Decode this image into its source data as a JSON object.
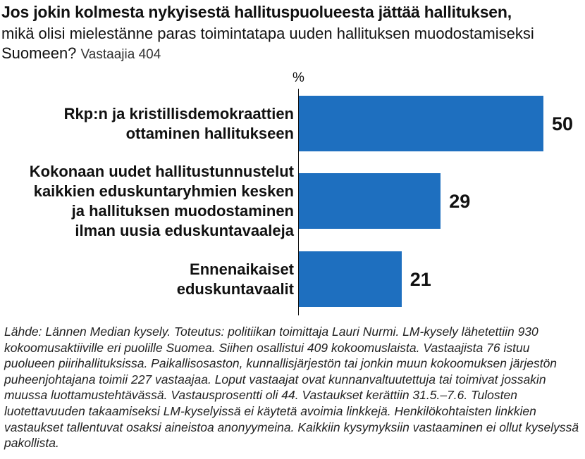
{
  "header": {
    "title": "Jos jokin kolmesta nykyisestä hallituspuolueesta jättää hallituksen,",
    "subtitle": "mikä olisi mielestänne paras toimintatapa uuden hallituksen muodostamiseksi Suomeen?",
    "respondents": "Vastaajia 404"
  },
  "unit": "%",
  "chart_data": {
    "type": "bar",
    "orientation": "horizontal",
    "categories": [
      [
        "Rkp:n ja kristillisdemokraattien",
        "ottaminen hallitukseen"
      ],
      [
        "Kokonaan uudet hallitustunnustelut",
        "kaikkien eduskuntaryhmien kesken",
        "ja hallituksen muodostaminen",
        "ilman uusia eduskuntavaaleja"
      ],
      [
        "Ennenaikaiset",
        "eduskuntavaalit"
      ]
    ],
    "values": [
      50,
      29,
      21
    ],
    "xlim": [
      0,
      50
    ],
    "bar_color": "#1e6fbf",
    "grid": false
  },
  "footnote": "Lähde: Lännen Median kysely. Toteutus: politiikan toimittaja Lauri Nurmi. LM-kysely lähetettiin 930 kokoomusaktiiville eri puolille Suomea. Siihen osallistui 409 kokoomuslaista. Vastaajista 76 istuu puolueen piirihallituksissa. Paikallisosaston, kunnallisjärjestön tai jonkin muun kokoomuksen järjestön puheenjohtajana toimii 227 vastaajaa. Loput vastaajat ovat kunnanvaltuutettuja tai toimivat jossakin muussa luottamustehtävässä. Vastausprosentti oli 44. Vastaukset kerättiin 31.5.–7.6. Tulosten luotettavuuden takaamiseksi LM-kyselyissä ei käytetä avoimia linkkejä. Henkilökohtaisten linkkien vastaukset tallentuvat osaksi aineistoa anonyymeina. Kaikkiin kysymyksiin vastaaminen ei ollut kyselyssä pakollista."
}
